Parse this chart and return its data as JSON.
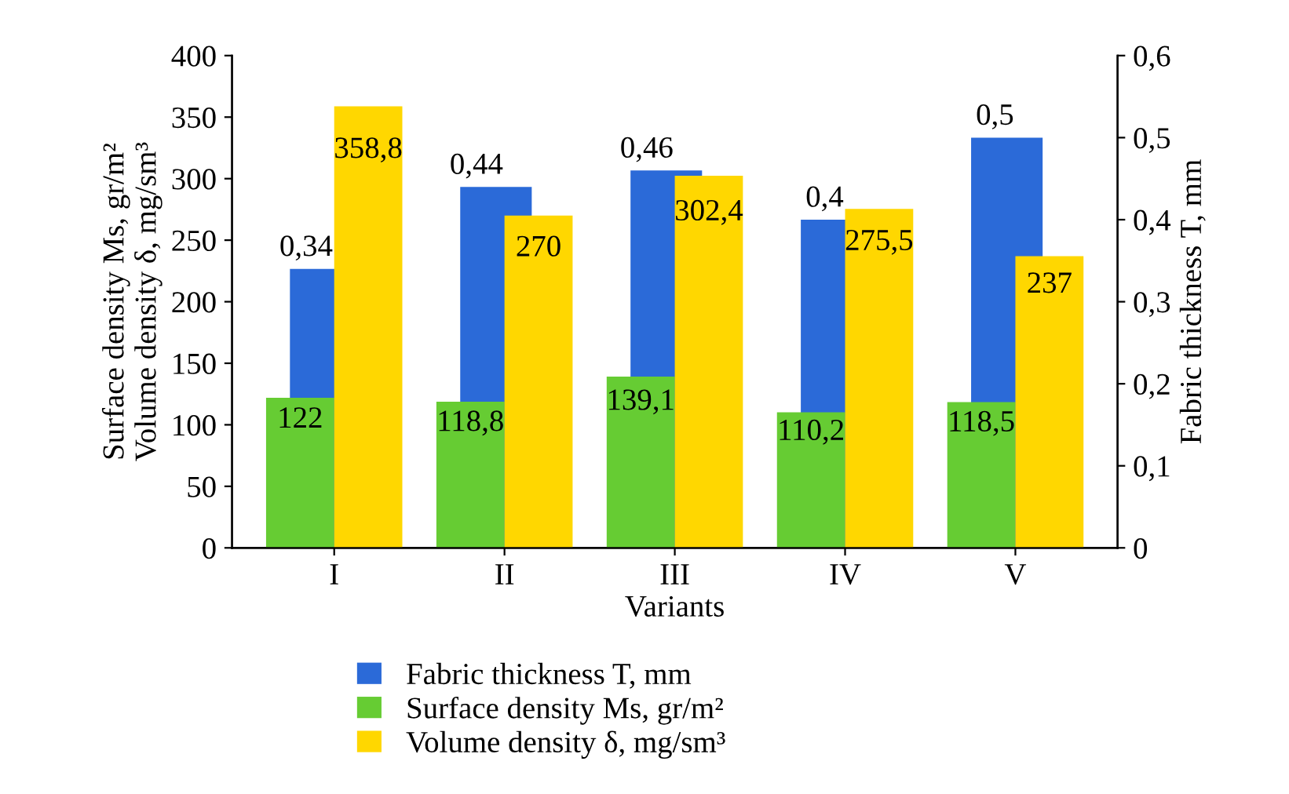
{
  "chart_data": {
    "type": "bar",
    "xlabel": "Variants",
    "ylabel": "Surface density Ms, gr/m²\nVolume density δ, mg/sm³",
    "y2label": "Fabric thickness T, mm",
    "categories": [
      "I",
      "II",
      "III",
      "IV",
      "V"
    ],
    "series": [
      {
        "name": "Fabric thickness T, mm",
        "color": "#2b6ad8",
        "axis": "y2",
        "values": [
          0.34,
          0.44,
          0.46,
          0.4,
          0.5
        ],
        "value_labels": [
          "0,34",
          "0,44",
          "0,46",
          "0,4",
          "0,5"
        ]
      },
      {
        "name": "Surface density Ms, gr/m²",
        "color": "#66cc33",
        "values": [
          122,
          118.8,
          139.1,
          110.2,
          118.5
        ],
        "value_labels": [
          "122",
          "118,8",
          "139,1",
          "110,2",
          "118,5"
        ]
      },
      {
        "name": "Volume density δ, mg/sm³",
        "color": "#ffd700",
        "values": [
          358.8,
          270,
          302.4,
          275.5,
          237
        ],
        "value_labels": [
          "358,8",
          "270",
          "302,4",
          "275,5",
          "237"
        ]
      }
    ],
    "ylim": [
      0,
      400
    ],
    "yticks": [
      0,
      50,
      100,
      150,
      200,
      250,
      300,
      350,
      400
    ],
    "y2lim": [
      0,
      0.6
    ],
    "y2ticks": [
      {
        "value": 0,
        "label": "0"
      },
      {
        "value": 0.1,
        "label": "0,1"
      },
      {
        "value": 0.2,
        "label": "0,2"
      },
      {
        "value": 0.3,
        "label": "0,3"
      },
      {
        "value": 0.4,
        "label": "0,4"
      },
      {
        "value": 0.5,
        "label": "0,5"
      },
      {
        "value": 0.6,
        "label": "0,6"
      }
    ],
    "grid": false,
    "legend": "bottom"
  }
}
